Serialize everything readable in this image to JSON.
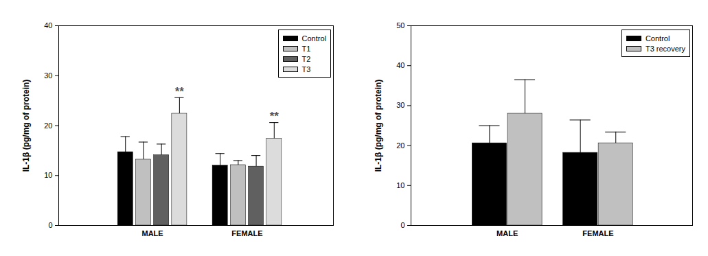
{
  "chart_data": [
    {
      "type": "bar",
      "y_label": "IL-1β (pg/mg of protein)",
      "categories": [
        "MALE",
        "FEMALE"
      ],
      "series": [
        {
          "name": "Control",
          "color": "#000000",
          "values": [
            14.7,
            12.0
          ],
          "errors": [
            3.1,
            2.4
          ]
        },
        {
          "name": "T1",
          "color": "#c0c0c0",
          "values": [
            13.2,
            12.1
          ],
          "errors": [
            3.5,
            0.9
          ]
        },
        {
          "name": "T2",
          "color": "#606060",
          "values": [
            14.1,
            11.8
          ],
          "errors": [
            2.2,
            2.2
          ]
        },
        {
          "name": "T3",
          "color": "#dcdcdc",
          "values": [
            22.4,
            17.4
          ],
          "errors": [
            3.2,
            3.2
          ],
          "annotations": [
            "**",
            "**"
          ]
        }
      ],
      "ylim": [
        0,
        40
      ],
      "yticks": [
        0,
        10,
        20,
        30,
        40
      ],
      "legend": "upper right"
    },
    {
      "type": "bar",
      "y_label": "IL-1β (pg/mg of protein)",
      "categories": [
        "MALE",
        "FEMALE"
      ],
      "series": [
        {
          "name": "Control",
          "color": "#000000",
          "values": [
            20.6,
            18.2
          ],
          "errors": [
            4.4,
            8.2
          ]
        },
        {
          "name": "T3 recovery",
          "color": "#c0c0c0",
          "values": [
            28.0,
            20.6
          ],
          "errors": [
            8.5,
            2.8
          ]
        }
      ],
      "ylim": [
        0,
        50
      ],
      "yticks": [
        0,
        10,
        20,
        30,
        40,
        50
      ],
      "legend": "upper right"
    }
  ]
}
